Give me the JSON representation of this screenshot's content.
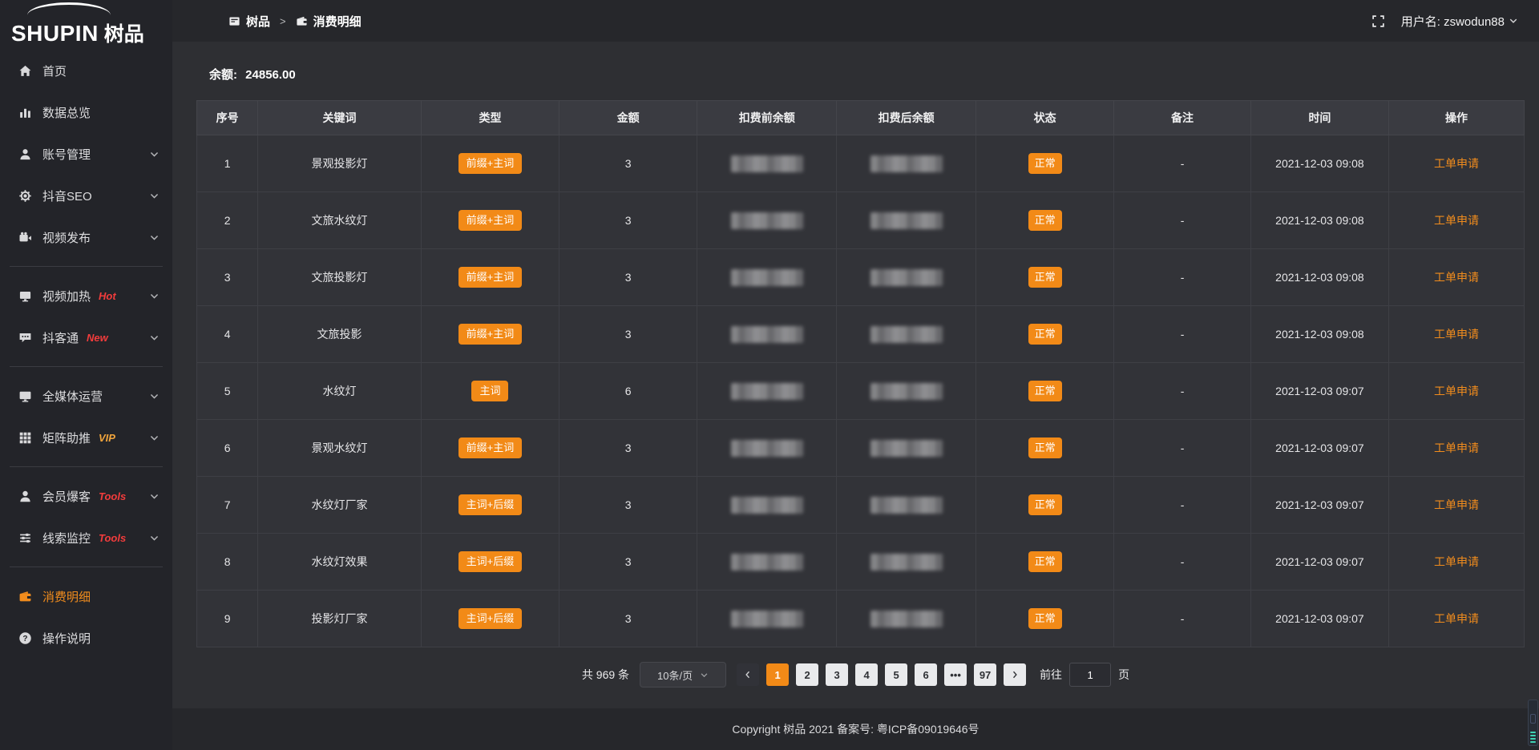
{
  "logo": {
    "text": "SHUPIN",
    "suffix": "树品"
  },
  "topbar": {
    "separator": ">",
    "breadcrumb": [
      {
        "name": "shupin",
        "icon": "dashboard-icon",
        "label": "树品"
      },
      {
        "name": "consumption-details",
        "icon": "wallet-icon",
        "label": "消费明细"
      }
    ],
    "username": "用户名: zswodun88"
  },
  "sidebar": {
    "groups": [
      [
        {
          "name": "home",
          "icon": "home-icon",
          "label": "首页"
        },
        {
          "name": "data-overview",
          "icon": "chart-icon",
          "label": "数据总览"
        },
        {
          "name": "account-management",
          "icon": "user-icon",
          "label": "账号管理",
          "chevron": true
        },
        {
          "name": "douyin-seo",
          "icon": "gear-icon",
          "label": "抖音SEO",
          "chevron": true
        },
        {
          "name": "video-publish",
          "icon": "video-icon",
          "label": "视频发布",
          "chevron": true
        }
      ],
      [
        {
          "name": "video-heating",
          "icon": "display-icon",
          "label": "视频加热",
          "tag": "Hot",
          "tag_color": "red",
          "chevron": true
        },
        {
          "name": "douketong",
          "icon": "chat-icon",
          "label": "抖客通",
          "tag": "New",
          "tag_color": "red",
          "chevron": true
        }
      ],
      [
        {
          "name": "all-media-operation",
          "icon": "monitor-icon",
          "label": "全媒体运营",
          "chevron": true
        },
        {
          "name": "matrix-boost",
          "icon": "grid-icon",
          "label": "矩阵助推",
          "tag": "VIP",
          "tag_color": "gold",
          "chevron": true
        }
      ],
      [
        {
          "name": "member-burst",
          "icon": "member-icon",
          "label": "会员爆客",
          "tag": "Tools",
          "tag_color": "red",
          "chevron": true
        },
        {
          "name": "lead-monitor",
          "icon": "sliders-icon",
          "label": "线索监控",
          "tag": "Tools",
          "tag_color": "red",
          "chevron": true
        }
      ],
      [
        {
          "name": "consumption-details",
          "icon": "wallet-icon",
          "label": "消费明细",
          "active": true
        },
        {
          "name": "operation-guide",
          "icon": "question-icon",
          "label": "操作说明"
        }
      ]
    ]
  },
  "main": {
    "balance_label": "余额:",
    "balance_value": "24856.00"
  },
  "table": {
    "columns": [
      {
        "label": "序号",
        "key": "index"
      },
      {
        "label": "关键词",
        "key": "keyword"
      },
      {
        "label": "类型",
        "key": "type",
        "render": "badge"
      },
      {
        "label": "金额",
        "key": "amount"
      },
      {
        "label": "扣费前余额",
        "key": "pre_balance",
        "render": "masked"
      },
      {
        "label": "扣费后余额",
        "key": "post_balance",
        "render": "masked"
      },
      {
        "label": "状态",
        "key": "status",
        "render": "badge"
      },
      {
        "label": "备注",
        "key": "remark"
      },
      {
        "label": "时间",
        "key": "time"
      },
      {
        "label": "操作",
        "key": "action",
        "render": "link"
      }
    ],
    "rows": [
      {
        "index": "1",
        "keyword": "景观投影灯",
        "type": "前缀+主词",
        "amount": "3",
        "status": "正常",
        "remark": "-",
        "time": "2021-12-03 09:08",
        "action": "工单申请"
      },
      {
        "index": "2",
        "keyword": "文旅水纹灯",
        "type": "前缀+主词",
        "amount": "3",
        "status": "正常",
        "remark": "-",
        "time": "2021-12-03 09:08",
        "action": "工单申请"
      },
      {
        "index": "3",
        "keyword": "文旅投影灯",
        "type": "前缀+主词",
        "amount": "3",
        "status": "正常",
        "remark": "-",
        "time": "2021-12-03 09:08",
        "action": "工单申请"
      },
      {
        "index": "4",
        "keyword": "文旅投影",
        "type": "前缀+主词",
        "amount": "3",
        "status": "正常",
        "remark": "-",
        "time": "2021-12-03 09:08",
        "action": "工单申请"
      },
      {
        "index": "5",
        "keyword": "水纹灯",
        "type": "主词",
        "amount": "6",
        "status": "正常",
        "remark": "-",
        "time": "2021-12-03 09:07",
        "action": "工单申请"
      },
      {
        "index": "6",
        "keyword": "景观水纹灯",
        "type": "前缀+主词",
        "amount": "3",
        "status": "正常",
        "remark": "-",
        "time": "2021-12-03 09:07",
        "action": "工单申请"
      },
      {
        "index": "7",
        "keyword": "水纹灯厂家",
        "type": "主词+后缀",
        "amount": "3",
        "status": "正常",
        "remark": "-",
        "time": "2021-12-03 09:07",
        "action": "工单申请"
      },
      {
        "index": "8",
        "keyword": "水纹灯效果",
        "type": "主词+后缀",
        "amount": "3",
        "status": "正常",
        "remark": "-",
        "time": "2021-12-03 09:07",
        "action": "工单申请"
      },
      {
        "index": "9",
        "keyword": "投影灯厂家",
        "type": "主词+后缀",
        "amount": "3",
        "status": "正常",
        "remark": "-",
        "time": "2021-12-03 09:07",
        "action": "工单申请"
      }
    ]
  },
  "pagination": {
    "total": "共 969 条",
    "page_size": "10条/页",
    "pages": [
      "1",
      "2",
      "3",
      "4",
      "5",
      "6",
      "•••",
      "97"
    ],
    "active_page": "1",
    "goto_label": "前往",
    "goto_value": "1",
    "goto_suffix": "页"
  },
  "footer": {
    "copyright": "Copyright 树品 2021 备案号:  粤ICP备09019646号"
  },
  "colors": {
    "accent_orange": "#f28a17",
    "tag_red": "#f23c3c",
    "tag_gold": "#f0a43c"
  }
}
